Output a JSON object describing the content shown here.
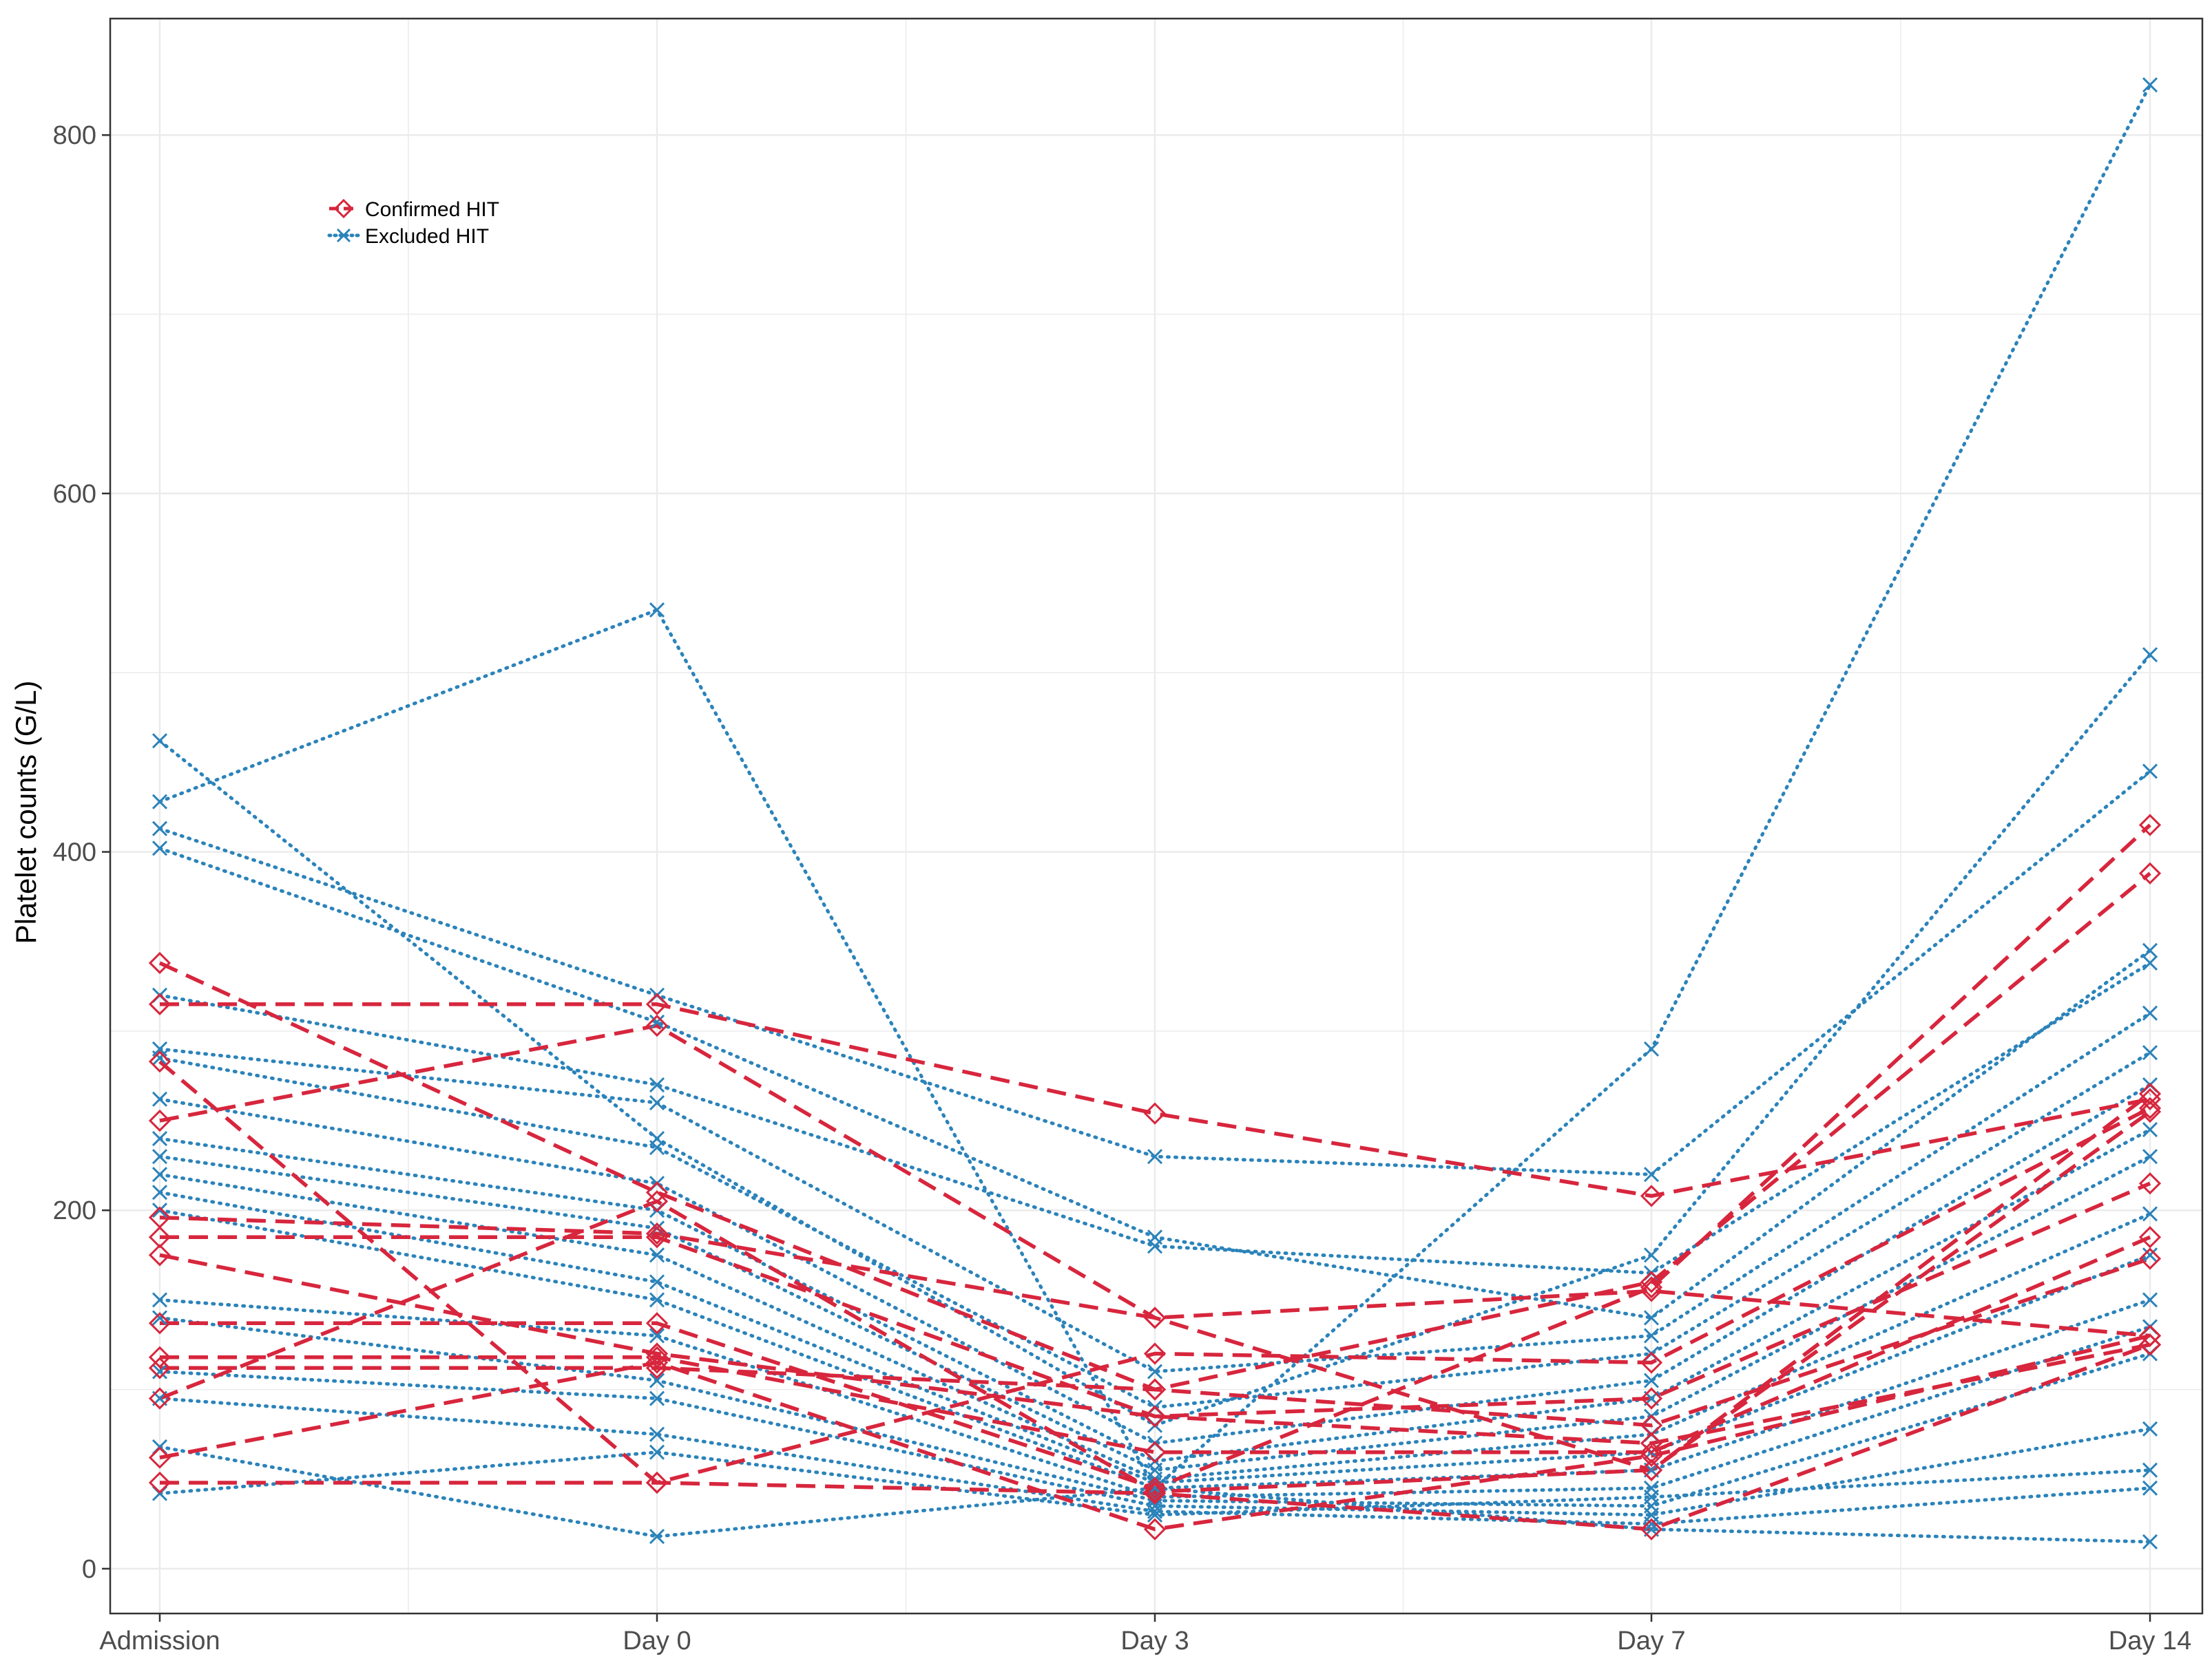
{
  "chart_data": {
    "type": "line",
    "title": "",
    "xlabel": "",
    "ylabel": "Platelet counts (G/L)",
    "categories": [
      "Admission",
      "Day 0",
      "Day 3",
      "Day 7",
      "Day 14"
    ],
    "y_ticks": [
      0,
      200,
      400,
      600,
      800
    ],
    "ylim": [
      -25,
      865
    ],
    "grid": true,
    "legend_position": "top-left",
    "colors": {
      "confirmed": "#d7263d",
      "excluded": "#2b83ba",
      "gridline": "#ebebeb",
      "axis": "#333333"
    },
    "legend": [
      {
        "key": "confirmed",
        "label": "Confirmed HIT",
        "marker": "diamond",
        "linestyle": "dashed"
      },
      {
        "key": "excluded",
        "label": "Excluded HIT",
        "marker": "x",
        "linestyle": "dotted"
      }
    ],
    "series": [
      {
        "name": "Confirmed HIT 1",
        "group": "confirmed",
        "values": [
          338,
          210,
          100,
          160,
          388
        ]
      },
      {
        "name": "Confirmed HIT 2",
        "group": "confirmed",
        "values": [
          315,
          315,
          254,
          208,
          262
        ]
      },
      {
        "name": "Confirmed HIT 3",
        "group": "confirmed",
        "values": [
          250,
          303,
          140,
          55,
          265
        ]
      },
      {
        "name": "Confirmed HIT 4",
        "group": "confirmed",
        "values": [
          196,
          187,
          140,
          155,
          130
        ]
      },
      {
        "name": "Confirmed HIT 5",
        "group": "confirmed",
        "values": [
          185,
          185,
          85,
          95,
          215
        ]
      },
      {
        "name": "Confirmed HIT 6",
        "group": "confirmed",
        "values": [
          175,
          120,
          85,
          70,
          125
        ]
      },
      {
        "name": "Confirmed HIT 7",
        "group": "confirmed",
        "values": [
          137,
          137,
          45,
          157,
          415
        ]
      },
      {
        "name": "Confirmed HIT 8",
        "group": "confirmed",
        "values": [
          118,
          118,
          65,
          65,
          185
        ]
      },
      {
        "name": "Confirmed HIT 9",
        "group": "confirmed",
        "values": [
          112,
          112,
          100,
          80,
          173
        ]
      },
      {
        "name": "Confirmed HIT 10",
        "group": "confirmed",
        "values": [
          95,
          205,
          43,
          55,
          255
        ]
      },
      {
        "name": "Confirmed HIT 11",
        "group": "confirmed",
        "values": [
          62,
          115,
          22,
          63,
          130
        ]
      },
      {
        "name": "Confirmed HIT 12",
        "group": "confirmed",
        "values": [
          48,
          48,
          42,
          22,
          125
        ]
      },
      {
        "name": "Confirmed HIT 13",
        "group": "confirmed",
        "values": [
          283,
          48,
          120,
          115,
          257
        ]
      },
      {
        "name": "Excluded HIT 1",
        "group": "excluded",
        "values": [
          428,
          535,
          45,
          290,
          828
        ]
      },
      {
        "name": "Excluded HIT 2",
        "group": "excluded",
        "values": [
          462,
          240,
          80,
          175,
          510
        ]
      },
      {
        "name": "Excluded HIT 3",
        "group": "excluded",
        "values": [
          413,
          320,
          230,
          220,
          445
        ]
      },
      {
        "name": "Excluded HIT 4",
        "group": "excluded",
        "values": [
          402,
          305,
          185,
          140,
          345
        ]
      },
      {
        "name": "Excluded HIT 5",
        "group": "excluded",
        "values": [
          320,
          270,
          180,
          165,
          338
        ]
      },
      {
        "name": "Excluded HIT 6",
        "group": "excluded",
        "values": [
          290,
          260,
          110,
          130,
          310
        ]
      },
      {
        "name": "Excluded HIT 7",
        "group": "excluded",
        "values": [
          285,
          235,
          90,
          120,
          288
        ]
      },
      {
        "name": "Excluded HIT 8",
        "group": "excluded",
        "values": [
          262,
          215,
          70,
          105,
          270
        ]
      },
      {
        "name": "Excluded HIT 9",
        "group": "excluded",
        "values": [
          240,
          200,
          60,
          95,
          245
        ]
      },
      {
        "name": "Excluded HIT 10",
        "group": "excluded",
        "values": [
          230,
          190,
          55,
          85,
          230
        ]
      },
      {
        "name": "Excluded HIT 11",
        "group": "excluded",
        "values": [
          220,
          175,
          50,
          75,
          198
        ]
      },
      {
        "name": "Excluded HIT 12",
        "group": "excluded",
        "values": [
          210,
          160,
          48,
          65,
          175
        ]
      },
      {
        "name": "Excluded HIT 13",
        "group": "excluded",
        "values": [
          200,
          150,
          45,
          55,
          150
        ]
      },
      {
        "name": "Excluded HIT 14",
        "group": "excluded",
        "values": [
          150,
          130,
          40,
          45,
          135
        ]
      },
      {
        "name": "Excluded HIT 15",
        "group": "excluded",
        "values": [
          140,
          105,
          38,
          35,
          120
        ]
      },
      {
        "name": "Excluded HIT 16",
        "group": "excluded",
        "values": [
          110,
          95,
          35,
          30,
          78
        ]
      },
      {
        "name": "Excluded HIT 17",
        "group": "excluded",
        "values": [
          95,
          75,
          32,
          25,
          45
        ]
      },
      {
        "name": "Excluded HIT 18",
        "group": "excluded",
        "values": [
          68,
          18,
          45,
          22,
          15
        ]
      },
      {
        "name": "Excluded HIT 19",
        "group": "excluded",
        "values": [
          42,
          65,
          30,
          40,
          55
        ]
      }
    ]
  }
}
